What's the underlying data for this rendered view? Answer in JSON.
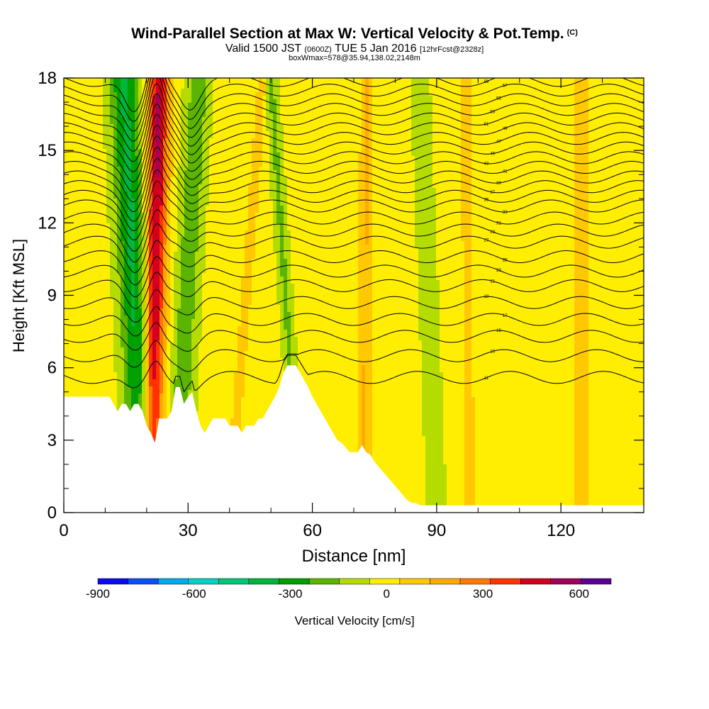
{
  "title": {
    "main": "Wind-Parallel Section at Max W: Vertical Velocity & Pot.Temp.",
    "main_mark": "(C)",
    "valid_a": "Valid 1500 JST",
    "valid_b": "(0600Z)",
    "valid_c": "TUE 5 Jan 2016",
    "valid_d": "[12hrFcst@2328z]",
    "box": "boxWmax=578@35.94,138.02,2148m"
  },
  "chart_data": {
    "type": "heatmap",
    "xlabel": "Distance [nm]",
    "ylabel": "Height [Kft MSL]",
    "xlim": [
      0,
      140
    ],
    "ylim": [
      0,
      18
    ],
    "xticks": [
      "0",
      "30",
      "60",
      "90",
      "120"
    ],
    "yticks": [
      "0",
      "3",
      "6",
      "9",
      "12",
      "15",
      "18"
    ],
    "colorbar": {
      "label": "Vertical Velocity [cm/s]",
      "ticks": [
        "-900",
        "-600",
        "-300",
        "0",
        "300",
        "600"
      ],
      "levels": [
        -900,
        -800,
        -700,
        -600,
        -500,
        -400,
        -300,
        -200,
        -100,
        0,
        100,
        200,
        300,
        400,
        500,
        600,
        700
      ],
      "colors": [
        "#0a0af0",
        "#0850f5",
        "#00aaee",
        "#00d2c8",
        "#00c878",
        "#00b43c",
        "#00a000",
        "#5ab400",
        "#b4dc00",
        "#ffee00",
        "#ffc800",
        "#ffaa00",
        "#ff7800",
        "#ff3200",
        "#d2001e",
        "#a0005a",
        "#5a0096"
      ]
    },
    "terrain": {
      "x": [
        0,
        5,
        10,
        11,
        12,
        13,
        14,
        15,
        16,
        17,
        18,
        19,
        20,
        21,
        22,
        23,
        24,
        25,
        26,
        27,
        28,
        29,
        30,
        31,
        32,
        33,
        34,
        35,
        36,
        37,
        38,
        39,
        40,
        41,
        42,
        43,
        44,
        45,
        46,
        47,
        48,
        49,
        50,
        51,
        52,
        53,
        54,
        55,
        56,
        57,
        58,
        59,
        60,
        61,
        62,
        63,
        64,
        65,
        66,
        67,
        68,
        69,
        70,
        71,
        72,
        73,
        74,
        75,
        76,
        77,
        78,
        79,
        80,
        81,
        82,
        83,
        84,
        85,
        86,
        87,
        88,
        89,
        90,
        140
      ],
      "h": [
        4.8,
        4.8,
        4.8,
        4.8,
        4.5,
        4.2,
        4.5,
        4.5,
        4.2,
        4.5,
        4.5,
        4.2,
        3.6,
        3.3,
        2.9,
        3.9,
        3.9,
        3.9,
        4.2,
        5.2,
        5.2,
        4.5,
        4.8,
        5.0,
        4.2,
        3.6,
        3.3,
        3.6,
        3.9,
        3.9,
        3.9,
        3.9,
        3.6,
        3.6,
        3.6,
        3.3,
        3.6,
        3.6,
        3.6,
        3.9,
        3.9,
        4.2,
        4.5,
        4.8,
        5.2,
        5.8,
        6.1,
        6.1,
        6.1,
        5.8,
        5.5,
        5.2,
        4.8,
        4.5,
        4.2,
        3.9,
        3.6,
        3.3,
        3.0,
        2.9,
        2.7,
        2.5,
        2.5,
        2.5,
        2.8,
        2.5,
        2.4,
        2.1,
        1.9,
        1.7,
        1.5,
        1.3,
        1.1,
        0.9,
        0.7,
        0.5,
        0.4,
        0.4,
        0.3,
        0.3,
        0.3,
        0.3,
        0.3,
        0.3
      ]
    },
    "vertical_velocity_bands": [
      {
        "x_bottom": 19.5,
        "x_top": 14.5,
        "width": 7.0,
        "w_max": -350
      },
      {
        "x_bottom": 21.0,
        "x_top": 23.0,
        "width": 5.0,
        "w_max": 578
      },
      {
        "x_bottom": 27.0,
        "x_top": 32.5,
        "width": 5.5,
        "w_max": -200
      },
      {
        "x_bottom": 40.0,
        "x_top": 48.0,
        "width": 3.0,
        "w_max": 120
      },
      {
        "x_bottom": 57.0,
        "x_top": 50.0,
        "width": 3.0,
        "w_max": -150
      },
      {
        "x_bottom": 72.5,
        "x_top": 73.0,
        "width": 3.0,
        "w_max": 180
      },
      {
        "x_bottom": 90.0,
        "x_top": 86.0,
        "width": 4.0,
        "w_max": -130
      },
      {
        "x_bottom": 98.0,
        "x_top": 97.0,
        "width": 3.0,
        "w_max": 120
      },
      {
        "x_bottom": 125.0,
        "x_top": 125.0,
        "width": 5.0,
        "w_max": 110
      }
    ],
    "theta_contours": {
      "base_heights": [
        5.6,
        6.5,
        7.3,
        8.0,
        8.7,
        9.4,
        10.0,
        10.6,
        11.2,
        11.7,
        12.2,
        12.7,
        13.1,
        13.5,
        13.9,
        14.3,
        14.7,
        15.1,
        15.5,
        15.9,
        16.3,
        16.7,
        17.1,
        17.5,
        17.9
      ],
      "labels": [
        "11",
        "13",
        "15",
        "17",
        "19",
        "21",
        "23",
        "25",
        "27",
        "29",
        "31",
        "33",
        "35",
        "37",
        "39",
        "41",
        "43",
        "45",
        "47",
        "49",
        "51",
        "53",
        "55",
        "57",
        "59"
      ]
    }
  }
}
